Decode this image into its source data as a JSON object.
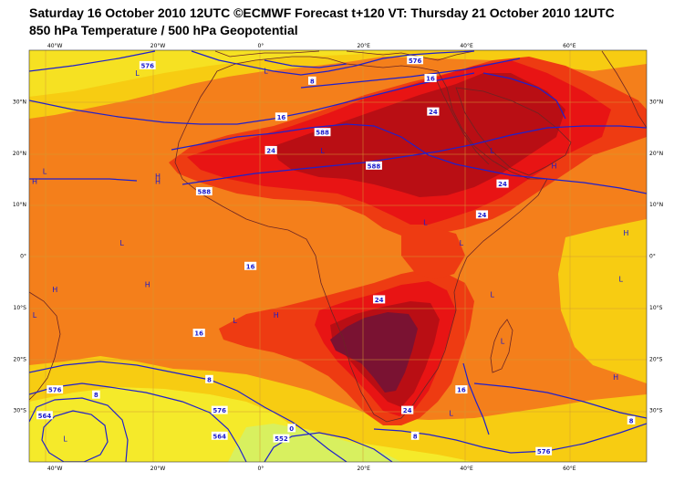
{
  "title_line1": "Saturday 16 October 2010 12UTC ©ECMWF Forecast t+120 VT: Thursday 21 October 2010 12UTC",
  "title_line2": "850 hPa Temperature / 500 hPa Geopotential",
  "map": {
    "lon_range": [
      -45,
      75
    ],
    "lat_range": [
      -40,
      40
    ],
    "lon_ticks": [
      {
        "value": -40,
        "label": "40°W"
      },
      {
        "value": -20,
        "label": "20°W"
      },
      {
        "value": 0,
        "label": "0°"
      },
      {
        "value": 20,
        "label": "20°E"
      },
      {
        "value": 40,
        "label": "40°E"
      },
      {
        "value": 60,
        "label": "60°E"
      }
    ],
    "lat_ticks": [
      {
        "value": 30,
        "label": "30°N"
      },
      {
        "value": 20,
        "label": "20°N"
      },
      {
        "value": 10,
        "label": "10°N"
      },
      {
        "value": 0,
        "label": "0°"
      },
      {
        "value": -10,
        "label": "10°S"
      },
      {
        "value": -20,
        "label": "20°S"
      },
      {
        "value": -30,
        "label": "30°S"
      }
    ],
    "pressure_centers": [
      {
        "type": "L",
        "lon": -24,
        "lat": 35
      },
      {
        "type": "L",
        "lon": 1,
        "lat": 35.5
      },
      {
        "type": "L",
        "lon": -42,
        "lat": 16
      },
      {
        "type": "H",
        "lon": -47,
        "lat": 14
      },
      {
        "type": "H",
        "lon": -20,
        "lat": 15
      },
      {
        "type": "H",
        "lon": -20,
        "lat": 14
      },
      {
        "type": "L",
        "lon": 12,
        "lat": 20
      },
      {
        "type": "L",
        "lon": 45,
        "lat": 20
      },
      {
        "type": "H",
        "lon": 57,
        "lat": 17
      },
      {
        "type": "L",
        "lon": -27,
        "lat": 2
      },
      {
        "type": "L",
        "lon": 32,
        "lat": 6
      },
      {
        "type": "L",
        "lon": 39,
        "lat": 2
      },
      {
        "type": "H",
        "lon": 71,
        "lat": 4
      },
      {
        "type": "H",
        "lon": -40,
        "lat": -7
      },
      {
        "type": "H",
        "lon": -22,
        "lat": -6
      },
      {
        "type": "L",
        "lon": -50,
        "lat": -12
      },
      {
        "type": "H",
        "lon": 3,
        "lat": -12
      },
      {
        "type": "L",
        "lon": -5,
        "lat": -13
      },
      {
        "type": "L",
        "lon": 45,
        "lat": -8
      },
      {
        "type": "L",
        "lon": 70,
        "lat": -5
      },
      {
        "type": "L",
        "lon": 47,
        "lat": -17
      },
      {
        "type": "H",
        "lon": 69,
        "lat": -24
      },
      {
        "type": "L",
        "lon": 37,
        "lat": -31
      },
      {
        "type": "L",
        "lon": -38,
        "lat": -36
      }
    ],
    "contour_labels": [
      {
        "value": "576",
        "lon": -22,
        "lat": 37
      },
      {
        "value": "576",
        "lon": 30,
        "lat": 38
      },
      {
        "value": "8",
        "lon": 10,
        "lat": 34
      },
      {
        "value": "16",
        "lon": 33,
        "lat": 34.5
      },
      {
        "value": "16",
        "lon": 4,
        "lat": 27
      },
      {
        "value": "24",
        "lon": 33.5,
        "lat": 28
      },
      {
        "value": "588",
        "lon": 12,
        "lat": 24
      },
      {
        "value": "24",
        "lon": 2,
        "lat": 20.5
      },
      {
        "value": "588",
        "lon": 22,
        "lat": 17.5
      },
      {
        "value": "588",
        "lon": -11,
        "lat": 12.5
      },
      {
        "value": "24",
        "lon": 47,
        "lat": 14
      },
      {
        "value": "24",
        "lon": 43,
        "lat": 8
      },
      {
        "value": "16",
        "lon": -2,
        "lat": -2
      },
      {
        "value": "24",
        "lon": 23,
        "lat": -8.5
      },
      {
        "value": "16",
        "lon": -12,
        "lat": -15
      },
      {
        "value": "8",
        "lon": -10,
        "lat": -24
      },
      {
        "value": "576",
        "lon": -40,
        "lat": -26
      },
      {
        "value": "8",
        "lon": -32,
        "lat": -27
      },
      {
        "value": "16",
        "lon": 39,
        "lat": -26
      },
      {
        "value": "576",
        "lon": -8,
        "lat": -30
      },
      {
        "value": "24",
        "lon": 28.5,
        "lat": -30
      },
      {
        "value": "564",
        "lon": -42,
        "lat": -31
      },
      {
        "value": "564",
        "lon": -8,
        "lat": -35
      },
      {
        "value": "0",
        "lon": 6,
        "lat": -33.5
      },
      {
        "value": "552",
        "lon": 4,
        "lat": -35.5
      },
      {
        "value": "8",
        "lon": 30,
        "lat": -35
      },
      {
        "value": "576",
        "lon": 55,
        "lat": -38
      },
      {
        "value": "8",
        "lon": 72,
        "lat": -32
      }
    ]
  },
  "colors": {
    "background_orange": "#f47f1b",
    "yellow": "#f7cc12",
    "light_yellow": "#f5ea2a",
    "pale_green": "#d8f05f",
    "red_orange": "#ee3b12",
    "red": "#e81414",
    "dark_red": "#b90e14",
    "maroon": "#7a1232",
    "contour_blue": "#2020cc",
    "coast_brown": "#6b2525"
  }
}
